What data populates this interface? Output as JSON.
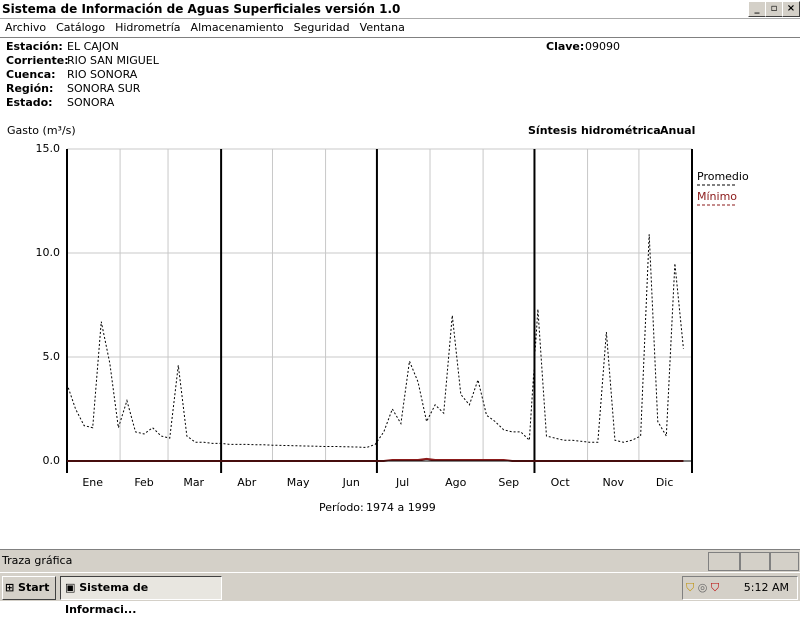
{
  "window": {
    "title": "Sistema de Información de Aguas Superficiales  versión 1.0"
  },
  "menu": [
    "Archivo",
    "Catálogo",
    "Hidrometría",
    "Almacenamiento",
    "Seguridad",
    "Ventana"
  ],
  "station": {
    "fields": [
      {
        "label": "Estación:",
        "value": "EL CAJON"
      },
      {
        "label": "Corriente:",
        "value": "RIO SAN MIGUEL"
      },
      {
        "label": "Cuenca:",
        "value": "RIO SONORA"
      },
      {
        "label": "Región:",
        "value": "SONORA SUR"
      },
      {
        "label": "Estado:",
        "value": "SONORA"
      }
    ],
    "clave_label": "Clave:",
    "clave": "09090"
  },
  "chart_data": {
    "type": "line",
    "y_label": "Gasto (m³/s)",
    "subtitle": "Síntesis hidrométrica",
    "period_type": "Anual",
    "period_label": "Período:",
    "period": "1974 a 1999",
    "xlim": [
      1,
      366
    ],
    "ylim": [
      0,
      15
    ],
    "yticks": [
      {
        "value": 0,
        "label": "0.0"
      },
      {
        "value": 5,
        "label": "5.0"
      },
      {
        "value": 10,
        "label": "10.0"
      },
      {
        "value": 15,
        "label": "15.0"
      }
    ],
    "xticks": [
      {
        "value": 16,
        "label": "Ene"
      },
      {
        "value": 46,
        "label": "Feb"
      },
      {
        "value": 75,
        "label": "Mar"
      },
      {
        "value": 106,
        "label": "Abr"
      },
      {
        "value": 136,
        "label": "May"
      },
      {
        "value": 167,
        "label": "Jun"
      },
      {
        "value": 197,
        "label": "Jul"
      },
      {
        "value": 228,
        "label": "Ago"
      },
      {
        "value": 259,
        "label": "Sep"
      },
      {
        "value": 289,
        "label": "Oct"
      },
      {
        "value": 320,
        "label": "Nov"
      },
      {
        "value": 350,
        "label": "Dic"
      }
    ],
    "month_bounds": [
      1,
      32,
      60,
      91,
      121,
      152,
      182,
      213,
      244,
      274,
      305,
      335,
      366
    ],
    "grid": true,
    "x": [
      1,
      6,
      11,
      16,
      21,
      26,
      31,
      36,
      41,
      46,
      51,
      56,
      61,
      66,
      71,
      76,
      81,
      86,
      91,
      96,
      101,
      106,
      111,
      116,
      121,
      126,
      131,
      136,
      141,
      146,
      151,
      156,
      161,
      166,
      171,
      176,
      181,
      186,
      191,
      196,
      201,
      206,
      211,
      216,
      221,
      226,
      231,
      236,
      241,
      246,
      251,
      256,
      261,
      266,
      271,
      276,
      281,
      286,
      291,
      296,
      301,
      306,
      311,
      316,
      321,
      326,
      331,
      336,
      341,
      346,
      351,
      356,
      361
    ],
    "series": [
      {
        "name": "Promedio",
        "color": "#000000",
        "values": [
          3.7,
          2.5,
          1.7,
          1.6,
          6.7,
          4.7,
          1.6,
          2.9,
          1.4,
          1.3,
          1.6,
          1.2,
          1.1,
          4.6,
          1.2,
          0.9,
          0.9,
          0.85,
          0.85,
          0.8,
          0.8,
          0.8,
          0.78,
          0.78,
          0.76,
          0.75,
          0.74,
          0.73,
          0.72,
          0.71,
          0.7,
          0.7,
          0.69,
          0.68,
          0.67,
          0.65,
          0.8,
          1.4,
          2.5,
          1.8,
          4.8,
          3.8,
          1.9,
          2.7,
          2.3,
          7.0,
          3.2,
          2.7,
          3.9,
          2.2,
          1.9,
          1.5,
          1.4,
          1.4,
          1.0,
          7.3,
          1.2,
          1.1,
          1.0,
          1.0,
          0.95,
          0.9,
          0.9,
          6.2,
          1.0,
          0.9,
          1.0,
          1.2,
          10.9,
          1.9,
          1.2,
          9.5,
          5.4
        ]
      },
      {
        "name": "Mínimo",
        "color": "#8b1a1a",
        "values": [
          0,
          0,
          0,
          0,
          0,
          0,
          0,
          0,
          0,
          0,
          0,
          0,
          0,
          0,
          0,
          0,
          0,
          0,
          0,
          0,
          0,
          0,
          0,
          0,
          0,
          0,
          0,
          0,
          0,
          0,
          0,
          0,
          0,
          0,
          0,
          0,
          0,
          0,
          0.05,
          0.05,
          0.05,
          0.05,
          0.1,
          0.05,
          0.05,
          0.05,
          0.05,
          0.05,
          0.05,
          0.05,
          0.05,
          0.05,
          0,
          0,
          0,
          0,
          0,
          0,
          0,
          0,
          0,
          0,
          0,
          0,
          0,
          0,
          0,
          0,
          0,
          0,
          0,
          0,
          0
        ]
      }
    ]
  },
  "status": {
    "text": "Traza gráfica"
  },
  "taskbar": {
    "start": "Start",
    "task": "Sistema de Informaci...",
    "clock": "5:12 AM"
  }
}
